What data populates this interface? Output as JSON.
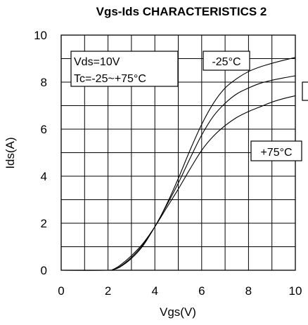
{
  "chart_data": {
    "type": "line",
    "title": "Vgs-Ids CHARACTERISTICS 2",
    "xlabel": "Vgs(V)",
    "ylabel": "Ids(A)",
    "xlim": [
      0,
      10
    ],
    "ylim": [
      0,
      10
    ],
    "x_ticks": [
      "0",
      "2",
      "4",
      "6",
      "8",
      "10"
    ],
    "y_ticks": [
      "0",
      "2",
      "4",
      "6",
      "8",
      "10"
    ],
    "grid": true,
    "series": [
      {
        "name": "-25°C",
        "points": [
          [
            0,
            0
          ],
          [
            2.0,
            0
          ],
          [
            2.2,
            0.02
          ],
          [
            2.5,
            0.15
          ],
          [
            3.0,
            0.55
          ],
          [
            3.5,
            1.1
          ],
          [
            4.0,
            1.85
          ],
          [
            4.5,
            2.8
          ],
          [
            5.0,
            3.9
          ],
          [
            5.5,
            5.1
          ],
          [
            6.0,
            6.2
          ],
          [
            6.5,
            7.1
          ],
          [
            7.0,
            7.75
          ],
          [
            7.5,
            8.15
          ],
          [
            8.0,
            8.45
          ],
          [
            8.5,
            8.65
          ],
          [
            9.0,
            8.8
          ],
          [
            9.5,
            8.93
          ],
          [
            10.0,
            9.05
          ]
        ]
      },
      {
        "name": "",
        "points": [
          [
            0,
            0
          ],
          [
            2.0,
            0
          ],
          [
            2.2,
            0.02
          ],
          [
            2.5,
            0.13
          ],
          [
            3.0,
            0.5
          ],
          [
            3.5,
            1.05
          ],
          [
            4.0,
            1.85
          ],
          [
            4.5,
            2.75
          ],
          [
            5.0,
            3.7
          ],
          [
            5.5,
            4.75
          ],
          [
            6.0,
            5.75
          ],
          [
            6.5,
            6.55
          ],
          [
            7.0,
            7.1
          ],
          [
            7.5,
            7.5
          ],
          [
            8.0,
            7.75
          ],
          [
            8.5,
            7.95
          ],
          [
            9.0,
            8.08
          ],
          [
            9.5,
            8.18
          ],
          [
            10.0,
            8.27
          ]
        ]
      },
      {
        "name": "+75°C",
        "points": [
          [
            0,
            0
          ],
          [
            2.0,
            0
          ],
          [
            2.2,
            0.03
          ],
          [
            2.5,
            0.2
          ],
          [
            3.0,
            0.62
          ],
          [
            3.5,
            1.15
          ],
          [
            4.0,
            1.85
          ],
          [
            4.5,
            2.65
          ],
          [
            5.0,
            3.45
          ],
          [
            5.5,
            4.3
          ],
          [
            6.0,
            5.1
          ],
          [
            6.5,
            5.7
          ],
          [
            7.0,
            6.15
          ],
          [
            7.5,
            6.5
          ],
          [
            8.0,
            6.75
          ],
          [
            8.5,
            6.95
          ],
          [
            9.0,
            7.15
          ],
          [
            9.5,
            7.3
          ],
          [
            10.0,
            7.42
          ]
        ]
      }
    ],
    "annotations": [
      {
        "id": "conditions",
        "lines": [
          "Vds=10V",
          "Tc=-25~+75°C"
        ]
      },
      {
        "id": "label_cold",
        "text": "-25°C"
      },
      {
        "id": "label_hot",
        "text": "+75°C"
      }
    ]
  }
}
